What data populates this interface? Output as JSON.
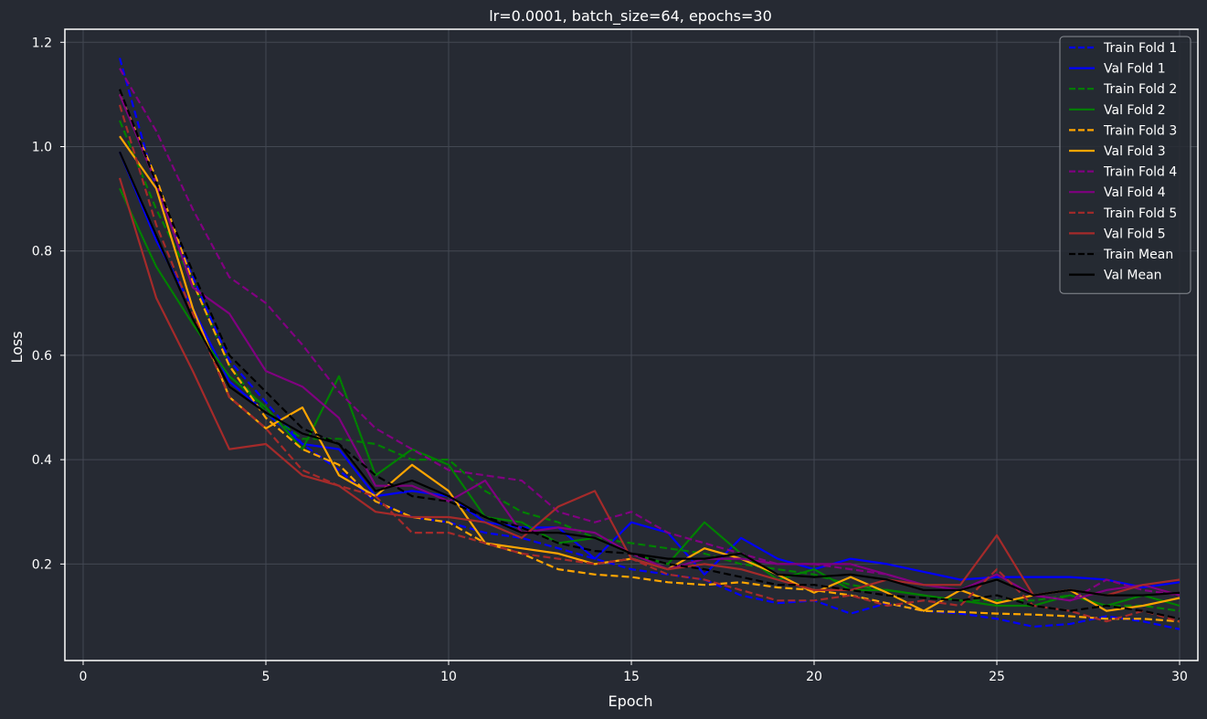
{
  "chart_data": {
    "type": "line",
    "title": "lr=0.0001, batch_size=64, epochs=30",
    "xlabel": "Epoch",
    "ylabel": "Loss",
    "xlim": [
      -0.5,
      30.5
    ],
    "ylim": [
      0.015,
      1.225
    ],
    "xticks": [
      0,
      5,
      10,
      15,
      20,
      25,
      30
    ],
    "yticks": [
      0.2,
      0.4,
      0.6,
      0.8,
      1.0,
      1.2
    ],
    "grid": true,
    "legend_position": "top-right",
    "x": [
      1,
      2,
      3,
      4,
      5,
      6,
      7,
      8,
      9,
      10,
      11,
      12,
      13,
      14,
      15,
      16,
      17,
      18,
      19,
      20,
      21,
      22,
      23,
      24,
      25,
      26,
      27,
      28,
      29,
      30
    ],
    "series": [
      {
        "name": "Train Fold 1",
        "color": "#0000ff",
        "style": "dashed",
        "values": [
          1.17,
          0.92,
          0.75,
          0.59,
          0.51,
          0.43,
          0.38,
          0.32,
          0.29,
          0.28,
          0.26,
          0.25,
          0.23,
          0.21,
          0.19,
          0.18,
          0.17,
          0.14,
          0.125,
          0.13,
          0.105,
          0.125,
          0.11,
          0.105,
          0.095,
          0.08,
          0.085,
          0.1,
          0.09,
          0.075
        ]
      },
      {
        "name": "Val Fold 1",
        "color": "#0000ff",
        "style": "solid",
        "values": [
          0.99,
          0.82,
          0.69,
          0.55,
          0.49,
          0.43,
          0.42,
          0.33,
          0.34,
          0.33,
          0.28,
          0.27,
          0.27,
          0.21,
          0.28,
          0.26,
          0.18,
          0.25,
          0.21,
          0.19,
          0.21,
          0.2,
          0.185,
          0.17,
          0.175,
          0.175,
          0.175,
          0.17,
          0.155,
          0.165
        ]
      },
      {
        "name": "Train Fold 2",
        "color": "#008000",
        "style": "dashed",
        "values": [
          1.05,
          0.88,
          0.74,
          0.58,
          0.49,
          0.44,
          0.44,
          0.43,
          0.4,
          0.4,
          0.34,
          0.3,
          0.28,
          0.25,
          0.24,
          0.23,
          0.22,
          0.2,
          0.19,
          0.18,
          0.16,
          0.15,
          0.14,
          0.13,
          0.13,
          0.13,
          0.14,
          0.12,
          0.12,
          0.11
        ]
      },
      {
        "name": "Val Fold 2",
        "color": "#008000",
        "style": "solid",
        "values": [
          0.92,
          0.77,
          0.66,
          0.56,
          0.5,
          0.42,
          0.56,
          0.37,
          0.42,
          0.39,
          0.29,
          0.28,
          0.24,
          0.25,
          0.22,
          0.2,
          0.28,
          0.22,
          0.17,
          0.19,
          0.15,
          0.15,
          0.14,
          0.13,
          0.12,
          0.12,
          0.14,
          0.12,
          0.14,
          0.12
        ]
      },
      {
        "name": "Train Fold 3",
        "color": "#ffa500",
        "style": "dashed",
        "values": [
          1.1,
          0.94,
          0.74,
          0.58,
          0.48,
          0.42,
          0.39,
          0.32,
          0.29,
          0.28,
          0.24,
          0.22,
          0.19,
          0.18,
          0.175,
          0.165,
          0.16,
          0.165,
          0.155,
          0.15,
          0.14,
          0.125,
          0.11,
          0.108,
          0.105,
          0.103,
          0.1,
          0.095,
          0.095,
          0.09
        ]
      },
      {
        "name": "Val Fold 3",
        "color": "#ffa500",
        "style": "solid",
        "values": [
          1.02,
          0.92,
          0.69,
          0.52,
          0.46,
          0.5,
          0.37,
          0.33,
          0.39,
          0.34,
          0.24,
          0.23,
          0.22,
          0.2,
          0.21,
          0.19,
          0.23,
          0.21,
          0.18,
          0.145,
          0.175,
          0.145,
          0.11,
          0.15,
          0.125,
          0.14,
          0.15,
          0.11,
          0.12,
          0.135
        ]
      },
      {
        "name": "Train Fold 4",
        "color": "#800080",
        "style": "dashed",
        "values": [
          1.15,
          1.03,
          0.88,
          0.75,
          0.7,
          0.62,
          0.53,
          0.46,
          0.42,
          0.38,
          0.37,
          0.36,
          0.3,
          0.28,
          0.3,
          0.26,
          0.24,
          0.22,
          0.2,
          0.2,
          0.19,
          0.18,
          0.16,
          0.15,
          0.18,
          0.14,
          0.13,
          0.17,
          0.15,
          0.14
        ]
      },
      {
        "name": "Val Fold 4",
        "color": "#800080",
        "style": "solid",
        "values": [
          1.1,
          0.93,
          0.73,
          0.68,
          0.57,
          0.54,
          0.48,
          0.35,
          0.35,
          0.32,
          0.36,
          0.26,
          0.27,
          0.26,
          0.22,
          0.19,
          0.21,
          0.21,
          0.2,
          0.2,
          0.2,
          0.18,
          0.16,
          0.15,
          0.18,
          0.14,
          0.13,
          0.15,
          0.16,
          0.14
        ]
      },
      {
        "name": "Train Fold 5",
        "color": "#a52a2a",
        "style": "dashed",
        "values": [
          1.08,
          0.85,
          0.68,
          0.52,
          0.46,
          0.38,
          0.35,
          0.33,
          0.26,
          0.26,
          0.24,
          0.22,
          0.21,
          0.2,
          0.21,
          0.18,
          0.17,
          0.15,
          0.13,
          0.13,
          0.14,
          0.12,
          0.13,
          0.12,
          0.19,
          0.12,
          0.11,
          0.09,
          0.11,
          0.09
        ]
      },
      {
        "name": "Val Fold 5",
        "color": "#a52a2a",
        "style": "solid",
        "values": [
          0.94,
          0.71,
          0.57,
          0.42,
          0.43,
          0.37,
          0.35,
          0.3,
          0.29,
          0.29,
          0.28,
          0.25,
          0.31,
          0.34,
          0.21,
          0.19,
          0.2,
          0.19,
          0.17,
          0.15,
          0.15,
          0.17,
          0.16,
          0.16,
          0.255,
          0.14,
          0.15,
          0.14,
          0.16,
          0.17
        ]
      },
      {
        "name": "Train Mean",
        "color": "#000000",
        "style": "dashed",
        "values": [
          1.11,
          0.93,
          0.76,
          0.6,
          0.53,
          0.46,
          0.43,
          0.37,
          0.33,
          0.32,
          0.29,
          0.27,
          0.24,
          0.225,
          0.22,
          0.2,
          0.19,
          0.175,
          0.16,
          0.16,
          0.15,
          0.14,
          0.135,
          0.13,
          0.14,
          0.12,
          0.11,
          0.12,
          0.11,
          0.095
        ]
      },
      {
        "name": "Val Mean",
        "color": "#000000",
        "style": "solid",
        "values": [
          0.99,
          0.83,
          0.67,
          0.54,
          0.49,
          0.45,
          0.43,
          0.34,
          0.36,
          0.33,
          0.29,
          0.26,
          0.26,
          0.25,
          0.22,
          0.21,
          0.21,
          0.22,
          0.18,
          0.175,
          0.18,
          0.17,
          0.15,
          0.15,
          0.17,
          0.14,
          0.15,
          0.14,
          0.14,
          0.145
        ]
      }
    ]
  }
}
